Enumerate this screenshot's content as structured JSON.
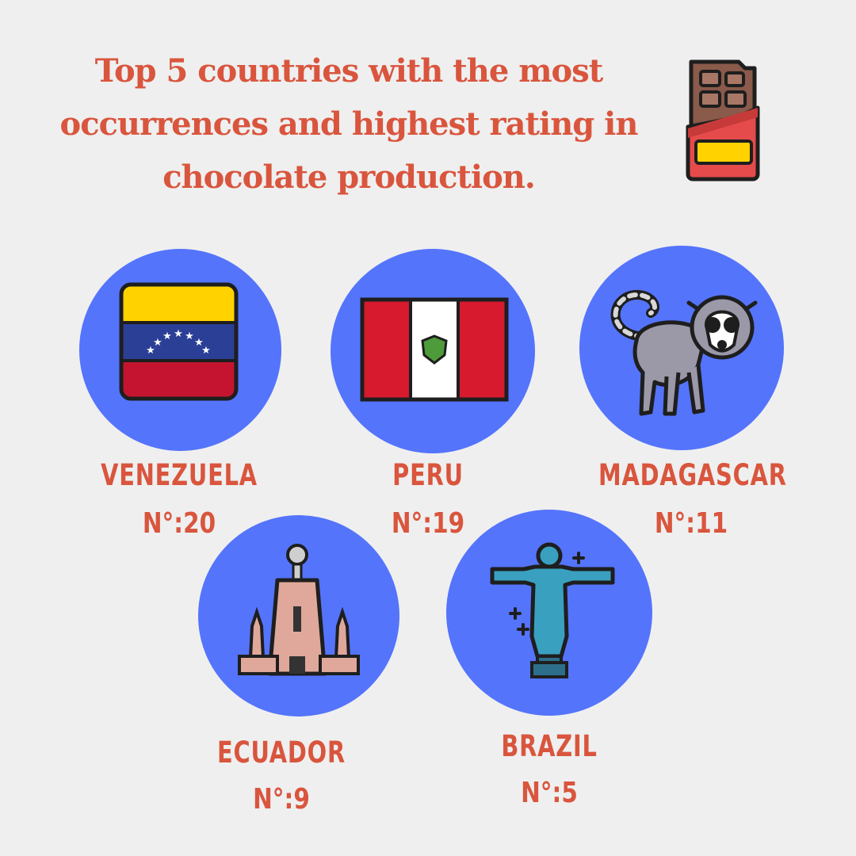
{
  "title": {
    "line1": "Top 5 countries with the most",
    "line2": "occurrences and highest rating in",
    "line3": "chocolate production."
  },
  "countries": [
    {
      "name": "VENEZUELA",
      "rank": "N°:20",
      "icon": "venezuela-flag-icon"
    },
    {
      "name": "PERU",
      "rank": "N°:19",
      "icon": "peru-flag-icon"
    },
    {
      "name": "MADAGASCAR",
      "rank": "N°:11",
      "icon": "lemur-icon"
    },
    {
      "name": "ECUADOR",
      "rank": "N°:9",
      "icon": "equator-monument-icon"
    },
    {
      "name": "BRAZIL",
      "rank": "N°:5",
      "icon": "christ-redeemer-icon"
    }
  ],
  "decor": {
    "icon": "chocolate-bar-icon"
  },
  "colors": {
    "background": "#efefef",
    "accent_text": "#d9553d",
    "circle": "#5474fb"
  }
}
